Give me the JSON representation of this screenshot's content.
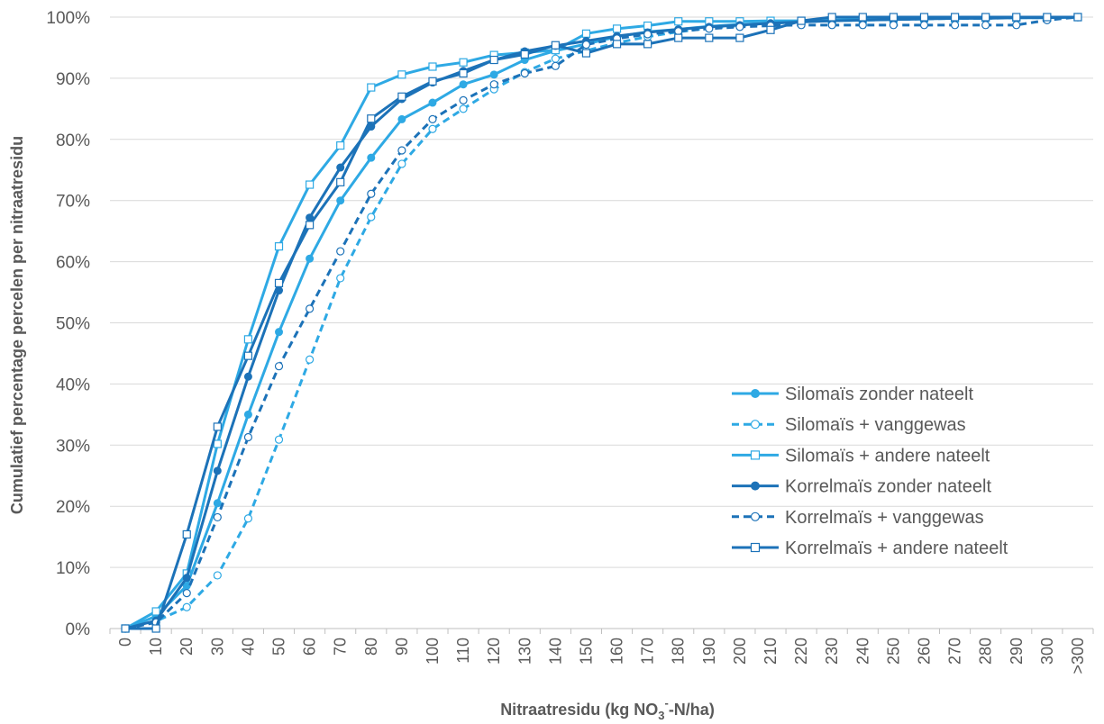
{
  "chart_data": {
    "type": "line",
    "xlabel": "Nitraatresidu (kg NO₃⁻-N/ha)",
    "xlabel_parts": [
      "Nitraatresidu (kg NO",
      "3",
      "-",
      "-N/ha)"
    ],
    "ylabel": "Cumulatief percentage percelen per nitraatresidu",
    "ylim": [
      0,
      100
    ],
    "yticks": [
      "0%",
      "10%",
      "20%",
      "30%",
      "40%",
      "50%",
      "60%",
      "70%",
      "80%",
      "90%",
      "100%"
    ],
    "grid": "horizontal",
    "legend_position": "right",
    "categories": [
      "0",
      "10",
      "20",
      "30",
      "40",
      "50",
      "60",
      "70",
      "80",
      "90",
      "100",
      "110",
      "120",
      "130",
      "140",
      "150",
      "160",
      "170",
      "180",
      "190",
      "200",
      "210",
      "220",
      "230",
      "240",
      "250",
      "260",
      "270",
      "280",
      "290",
      "300",
      ">300"
    ],
    "series": [
      {
        "name": "Silomaïs zonder nateelt",
        "color": "#2EA9E4",
        "dash": "solid",
        "marker": "filled-circle",
        "values": [
          0,
          2,
          7,
          20.5,
          35,
          48.5,
          60.5,
          70,
          77,
          83.3,
          86,
          89,
          90.6,
          93,
          94.5,
          95.6,
          96.8,
          97.6,
          98,
          98.5,
          98.8,
          99,
          99.2,
          99.5,
          99.6,
          99.7,
          99.8,
          99.8,
          99.9,
          99.9,
          99.9,
          100
        ]
      },
      {
        "name": "Silomaïs + vanggewas",
        "color": "#2EA9E4",
        "dash": "dashed",
        "marker": "open-circle",
        "values": [
          0,
          1.2,
          3.5,
          8.7,
          18,
          30.9,
          44,
          57.3,
          67.3,
          76,
          81.7,
          85,
          88.2,
          91,
          93.2,
          94.5,
          95.8,
          96.8,
          97.6,
          98.2,
          98.6,
          99,
          99.2,
          99.4,
          99.5,
          99.6,
          99.7,
          99.8,
          99.8,
          99.9,
          99.9,
          100
        ]
      },
      {
        "name": "Silomaïs + andere nateelt",
        "color": "#2EA9E4",
        "dash": "solid",
        "marker": "open-square",
        "values": [
          0,
          2.8,
          9,
          30.2,
          47.3,
          62.5,
          72.6,
          79,
          88.5,
          90.6,
          91.9,
          92.6,
          93.8,
          94.2,
          94.6,
          97.3,
          98.1,
          98.6,
          99.3,
          99.3,
          99.3,
          99.4,
          99.4,
          99.5,
          99.6,
          99.7,
          99.8,
          99.8,
          99.9,
          99.9,
          99.9,
          100
        ]
      },
      {
        "name": "Korrelmaïs zonder nateelt",
        "color": "#1C72B8",
        "dash": "solid",
        "marker": "filled-circle",
        "values": [
          0,
          1.3,
          8.3,
          25.8,
          41.2,
          55.3,
          67.2,
          75.4,
          82.1,
          86.6,
          89.3,
          91.2,
          93,
          94.4,
          95.3,
          96.1,
          96.9,
          97.5,
          98,
          98.4,
          98.7,
          99,
          99.2,
          99.4,
          99.5,
          99.6,
          99.7,
          99.8,
          99.8,
          99.9,
          99.9,
          100
        ]
      },
      {
        "name": "Korrelmaïs + vanggewas",
        "color": "#1C72B8",
        "dash": "dashed",
        "marker": "open-circle",
        "values": [
          0,
          1,
          5.8,
          18.2,
          31.3,
          42.9,
          52.3,
          61.7,
          71.1,
          78.2,
          83.3,
          86.4,
          89,
          90.8,
          92,
          95.5,
          96.5,
          97.2,
          97.7,
          98.1,
          98.4,
          98.6,
          98.7,
          98.7,
          98.7,
          98.7,
          98.7,
          98.7,
          98.7,
          98.7,
          99.5,
          100
        ]
      },
      {
        "name": "Korrelmaïs + andere nateelt",
        "color": "#1C72B8",
        "dash": "solid",
        "marker": "open-square",
        "values": [
          0,
          0,
          15.4,
          33,
          44.6,
          56.5,
          66,
          73,
          83.4,
          87,
          89.5,
          90.8,
          93,
          93.9,
          95.4,
          94.1,
          95.6,
          95.6,
          96.6,
          96.6,
          96.6,
          97.9,
          99.4,
          100,
          100,
          100,
          100,
          100,
          100,
          100,
          100,
          100
        ]
      }
    ]
  }
}
